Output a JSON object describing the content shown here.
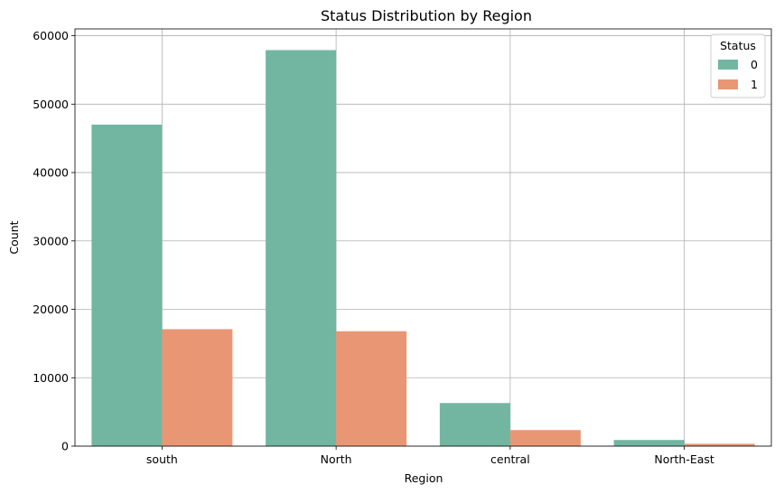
{
  "chart_data": {
    "type": "bar",
    "title": "Status Distribution by Region",
    "xlabel": "Region",
    "ylabel": "Count",
    "categories": [
      "south",
      "North",
      "central",
      "North-East"
    ],
    "series": [
      {
        "name": "0",
        "values": [
          47000,
          57900,
          6300,
          900
        ],
        "color": "#72b6a1"
      },
      {
        "name": "1",
        "values": [
          17100,
          16800,
          2350,
          350
        ],
        "color": "#e99675"
      }
    ],
    "ylim": [
      0,
      61000
    ],
    "yticks": [
      0,
      10000,
      20000,
      30000,
      40000,
      50000,
      60000
    ],
    "grid": true,
    "legend": {
      "title": "Status",
      "placement": "top-right"
    }
  }
}
